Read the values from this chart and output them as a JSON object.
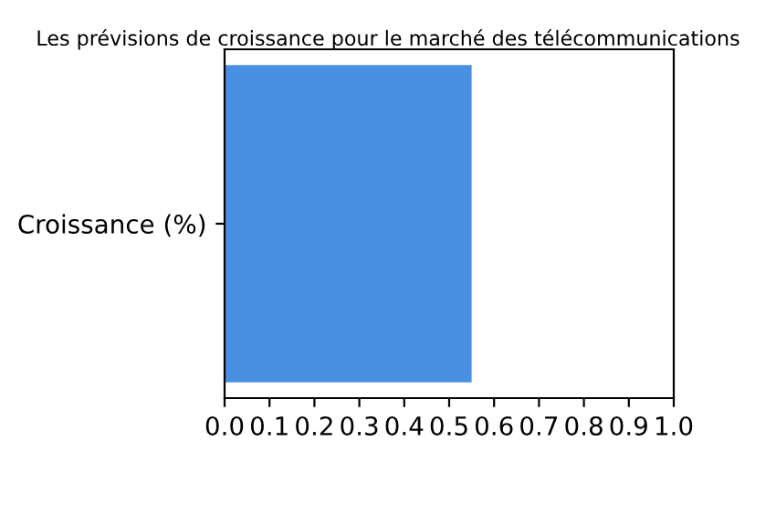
{
  "chart_data": {
    "type": "bar",
    "orientation": "horizontal",
    "title": "Les prévisions de croissance pour le marché des télécommunications",
    "categories": [
      "Croissance (%)"
    ],
    "values": [
      0.55
    ],
    "color": "#4a90e2",
    "xlim": [
      0,
      1
    ],
    "xticks": [
      {
        "value": 0,
        "label": "0.0"
      },
      0.1,
      0.2,
      0.3,
      0.4,
      0.5,
      0.6,
      0.7,
      0.8,
      0.9,
      {
        "value": 1,
        "label": "1.0"
      }
    ],
    "grid": false,
    "legend": false
  }
}
